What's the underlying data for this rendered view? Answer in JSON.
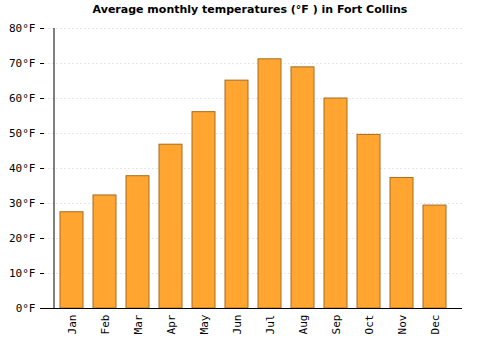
{
  "chart_data": {
    "type": "bar",
    "title": "Average monthly temperatures (°F ) in Fort Collins",
    "categories": [
      "Jan",
      "Feb",
      "Mar",
      "Apr",
      "May",
      "Jun",
      "Jul",
      "Aug",
      "Sep",
      "Oct",
      "Nov",
      "Dec"
    ],
    "values": [
      27.5,
      32.3,
      37.8,
      46.8,
      56.1,
      65.1,
      71.2,
      68.9,
      60.0,
      49.6,
      37.3,
      29.4
    ],
    "color": "#ffa530",
    "ylim": [
      0,
      80
    ],
    "yticks": [
      {
        "value": 0,
        "label": "0°F"
      },
      {
        "value": 10,
        "label": "10°F"
      },
      {
        "value": 20,
        "label": "20°F"
      },
      {
        "value": 30,
        "label": "30°F"
      },
      {
        "value": 40,
        "label": "40°F"
      },
      {
        "value": 50,
        "label": "50°F"
      },
      {
        "value": 60,
        "label": "60°F"
      },
      {
        "value": 70,
        "label": "70°F"
      },
      {
        "value": 80,
        "label": "80°F"
      }
    ],
    "grid": true
  }
}
